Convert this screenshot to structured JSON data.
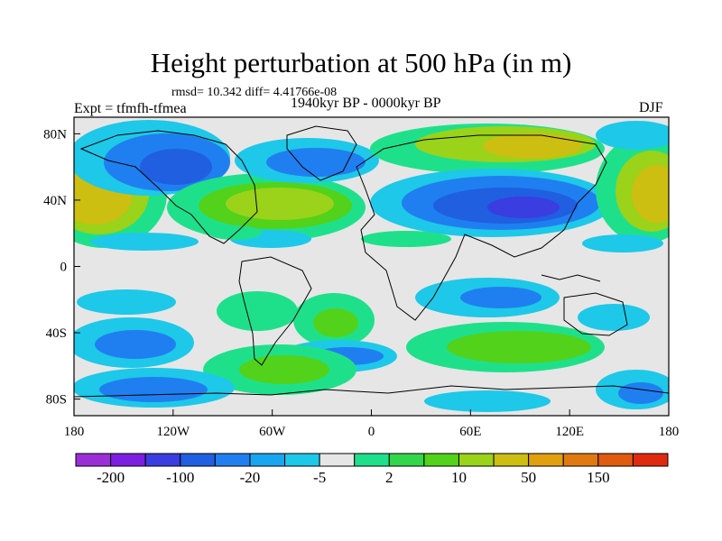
{
  "header": {
    "title": "Height perturbation at 500 hPa (in m)",
    "stats": "rmsd= 10.342 diff= 4.41766e-08",
    "experiment": "Expt = tfmfh-tfmea",
    "period": "1940kyr BP - 0000kyr BP",
    "season": "DJF"
  },
  "map": {
    "projection": "cylindrical equidistant",
    "lon_range": [
      -180,
      180
    ],
    "lat_range": [
      -90,
      90
    ],
    "lat_ticks": [
      {
        "value": 80,
        "label": "80N"
      },
      {
        "value": 40,
        "label": "40N"
      },
      {
        "value": 0,
        "label": "0"
      },
      {
        "value": -40,
        "label": "40S"
      },
      {
        "value": -80,
        "label": "80S"
      }
    ],
    "lon_ticks": [
      {
        "value": -180,
        "label": "180"
      },
      {
        "value": -120,
        "label": "120W"
      },
      {
        "value": -60,
        "label": "60W"
      },
      {
        "value": 0,
        "label": "0"
      },
      {
        "value": 60,
        "label": "60E"
      },
      {
        "value": 120,
        "label": "120E"
      },
      {
        "value": 180,
        "label": "180"
      }
    ],
    "colors": {
      "background_band": "#e6e6e6",
      "coastline": "#000000"
    }
  },
  "colorbar": {
    "colors": [
      "#9b2fd6",
      "#7b1fe0",
      "#3a3de0",
      "#1f5fe0",
      "#1f7ff0",
      "#1aa5f0",
      "#1ec8e8",
      "#e6e6e6",
      "#1fe08a",
      "#32d64a",
      "#52d21a",
      "#9bd21a",
      "#cdbe12",
      "#e0a010",
      "#e07a10",
      "#e05a10",
      "#e02a10"
    ],
    "labels": [
      {
        "after_box": 1,
        "text": "-200"
      },
      {
        "after_box": 3,
        "text": "-100"
      },
      {
        "after_box": 5,
        "text": "-20"
      },
      {
        "after_box": 7,
        "text": "-5"
      },
      {
        "after_box": 9,
        "text": "2"
      },
      {
        "after_box": 11,
        "text": "10"
      },
      {
        "after_box": 13,
        "text": "50"
      },
      {
        "after_box": 15,
        "text": "150"
      }
    ]
  }
}
